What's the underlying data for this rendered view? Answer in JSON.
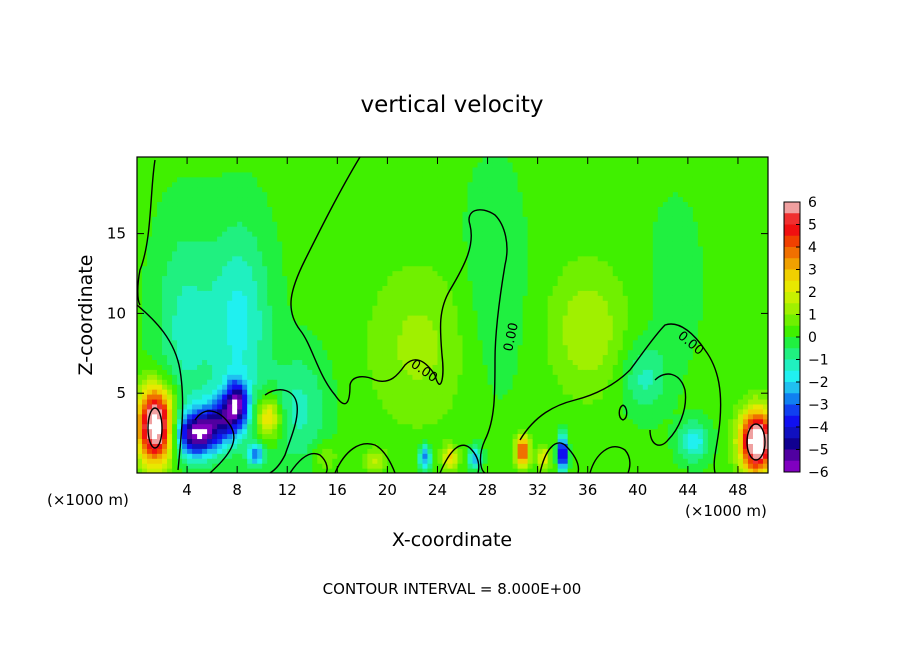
{
  "chart_data": {
    "type": "heatmap",
    "title": "vertical velocity",
    "xlabel": "X-coordinate",
    "ylabel": "Z-coordinate",
    "x_unit_left": "(×1000 m)",
    "x_unit_right": "(×1000 m)",
    "xlim": [
      0,
      50.4
    ],
    "ylim": [
      0,
      19.8
    ],
    "x_ticks": [
      4,
      8,
      12,
      16,
      20,
      24,
      28,
      32,
      36,
      40,
      44,
      48
    ],
    "y_ticks": [
      5,
      10,
      15
    ],
    "footer": "CONTOUR INTERVAL = 8.000E+00",
    "contour_label": "0.00",
    "colorbar": {
      "range": [
        -6,
        6
      ],
      "tick_labels": [
        "6",
        "5",
        "4",
        "3",
        "2",
        "1",
        "0",
        "−1",
        "−2",
        "−3",
        "−4",
        "−5",
        "−6"
      ],
      "bands": [
        {
          "from": 5.5,
          "to": 6,
          "color": "#f0a0a0"
        },
        {
          "from": 5,
          "to": 5.5,
          "color": "#f03030"
        },
        {
          "from": 4.5,
          "to": 5,
          "color": "#f01010"
        },
        {
          "from": 4,
          "to": 4.5,
          "color": "#f04000"
        },
        {
          "from": 3.5,
          "to": 4,
          "color": "#f07000"
        },
        {
          "from": 3,
          "to": 3.5,
          "color": "#f0a000"
        },
        {
          "from": 2.5,
          "to": 3,
          "color": "#f0d000"
        },
        {
          "from": 2,
          "to": 2.5,
          "color": "#e8e800"
        },
        {
          "from": 1.5,
          "to": 2,
          "color": "#c8f000"
        },
        {
          "from": 1,
          "to": 1.5,
          "color": "#a0f000"
        },
        {
          "from": 0.5,
          "to": 1,
          "color": "#70f000"
        },
        {
          "from": 0,
          "to": 0.5,
          "color": "#40f000"
        },
        {
          "from": -0.5,
          "to": 0,
          "color": "#20f040"
        },
        {
          "from": -1,
          "to": -0.5,
          "color": "#20f080"
        },
        {
          "from": -1.5,
          "to": -1,
          "color": "#20f0c0"
        },
        {
          "from": -2,
          "to": -1.5,
          "color": "#20f0f0"
        },
        {
          "from": -2.5,
          "to": -2,
          "color": "#20c0f0"
        },
        {
          "from": -3,
          "to": -2.5,
          "color": "#1080f0"
        },
        {
          "from": -3.5,
          "to": -3,
          "color": "#1040f0"
        },
        {
          "from": -4,
          "to": -3.5,
          "color": "#1010f0"
        },
        {
          "from": -4.5,
          "to": -4,
          "color": "#1010c0"
        },
        {
          "from": -5,
          "to": -4.5,
          "color": "#100090"
        },
        {
          "from": -5.5,
          "to": -5,
          "color": "#5000a0"
        },
        {
          "from": -6,
          "to": -5.5,
          "color": "#8000c0"
        }
      ]
    },
    "field": {
      "background_value": 0.15,
      "features": [
        {
          "x": 1.5,
          "z": 3.0,
          "value": 7.5,
          "rx": 1.4,
          "rz": 2.3
        },
        {
          "x": 4.8,
          "z": 2.5,
          "value": -5.6,
          "rx": 1.7,
          "rz": 1.4
        },
        {
          "x": 8.0,
          "z": 4.5,
          "value": -3.8,
          "rx": 0.9,
          "rz": 1.4
        },
        {
          "x": 7.0,
          "z": 3.5,
          "value": -3.5,
          "rx": 1.5,
          "rz": 1.5
        },
        {
          "x": 10.5,
          "z": 3.5,
          "value": 2.8,
          "rx": 1.0,
          "rz": 1.3
        },
        {
          "x": 9.5,
          "z": 1.2,
          "value": -3.0,
          "rx": 0.6,
          "rz": 0.7
        },
        {
          "x": 8.2,
          "z": 9.5,
          "value": -1.8,
          "rx": 2.4,
          "rz": 6.0
        },
        {
          "x": 3.8,
          "z": 9.0,
          "value": -1.3,
          "rx": 2.4,
          "rz": 6.5
        },
        {
          "x": 13.0,
          "z": 4.0,
          "value": -1.3,
          "rx": 2.2,
          "rz": 3.5
        },
        {
          "x": 23.0,
          "z": 1.0,
          "value": -3.0,
          "rx": 0.5,
          "rz": 0.8
        },
        {
          "x": 27.0,
          "z": 1.0,
          "value": -2.5,
          "rx": 0.5,
          "rz": 0.7
        },
        {
          "x": 30.8,
          "z": 1.4,
          "value": 4.3,
          "rx": 0.55,
          "rz": 1.0
        },
        {
          "x": 34.0,
          "z": 1.2,
          "value": -5.5,
          "rx": 0.35,
          "rz": 1.1
        },
        {
          "x": 32.5,
          "z": 1.0,
          "value": 2.3,
          "rx": 0.5,
          "rz": 0.7
        },
        {
          "x": 25.0,
          "z": 1.0,
          "value": 2.5,
          "rx": 0.6,
          "rz": 0.7
        },
        {
          "x": 19.0,
          "z": 0.8,
          "value": 1.5,
          "rx": 0.8,
          "rz": 0.7
        },
        {
          "x": 22.5,
          "z": 8.0,
          "value": 1.0,
          "rx": 4.0,
          "rz": 5.0
        },
        {
          "x": 36.0,
          "z": 9.0,
          "value": 1.3,
          "rx": 3.0,
          "rz": 4.0
        },
        {
          "x": 40.5,
          "z": 6.0,
          "value": -1.3,
          "rx": 1.8,
          "rz": 2.2
        },
        {
          "x": 44.5,
          "z": 2.0,
          "value": -2.0,
          "rx": 1.2,
          "rz": 1.2
        },
        {
          "x": 43.0,
          "z": 12.0,
          "value": -0.5,
          "rx": 2.0,
          "rz": 5.0
        },
        {
          "x": 28.5,
          "z": 12.0,
          "value": -0.6,
          "rx": 2.5,
          "rz": 7.0
        },
        {
          "x": 49.5,
          "z": 2.0,
          "value": 7.5,
          "rx": 1.3,
          "rz": 1.9
        },
        {
          "x": 15.0,
          "z": 1.0,
          "value": 0.9,
          "rx": 1.0,
          "rz": 1.0
        }
      ]
    }
  }
}
